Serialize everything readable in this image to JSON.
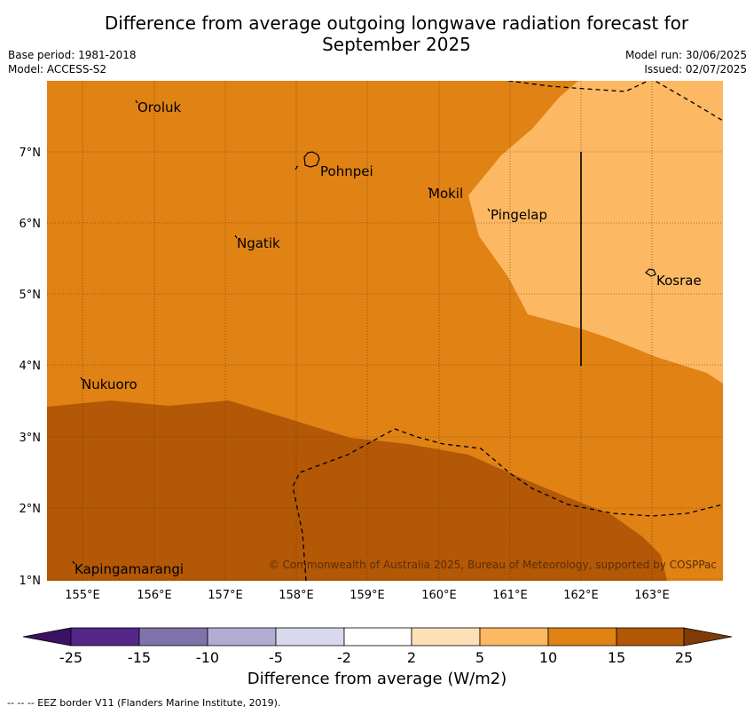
{
  "title_line1": "Difference from average outgoing longwave radiation forecast for",
  "title_line2": "September 2025",
  "meta_left": {
    "base_period": "Base period: 1981-2018",
    "model": "Model: ACCESS-S2"
  },
  "meta_right": {
    "model_run": "Model run: 30/06/2025",
    "issued": "Issued: 02/07/2025"
  },
  "map": {
    "lon_ticks": [
      "155°E",
      "156°E",
      "157°E",
      "158°E",
      "159°E",
      "160°E",
      "161°E",
      "162°E",
      "163°E"
    ],
    "lat_ticks": [
      "7°N",
      "6°N",
      "5°N",
      "4°N",
      "3°N",
      "2°N",
      "1°N"
    ],
    "places": [
      "Oroluk",
      "Pohnpei",
      "Mokil",
      "Pingelap",
      "Ngatik",
      "Kosrae",
      "Nukuoro",
      "Kapingamarangi"
    ],
    "copyright": "© Commonwealth of Australia 2025, Bureau of Meteorology, supported by COSPPac"
  },
  "colorbar": {
    "ticks": [
      "-25",
      "-15",
      "-10",
      "-5",
      "-2",
      "2",
      "5",
      "10",
      "15",
      "25"
    ],
    "colors": [
      "#3b1263",
      "#542788",
      "#8073ac",
      "#b2abd2",
      "#d8daeb",
      "#ffffff",
      "#fee0b6",
      "#fdb863",
      "#e08214",
      "#b35806",
      "#7f3b08"
    ],
    "label": "Difference from average (W/m2)"
  },
  "footer": "-- -- -- EEZ border V11 (Flanders Marine Institute, 2019)."
}
